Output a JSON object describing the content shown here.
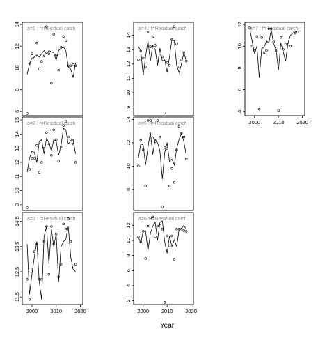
{
  "figure": {
    "xlabel": "Year"
  },
  "chart_data": [
    {
      "type": "scatter",
      "panel_label": "a=1 : f=Residual catch",
      "xlim": [
        1996,
        2021
      ],
      "ylim": [
        5.6,
        14.2
      ],
      "y_ticks": [
        6,
        8,
        10,
        12,
        14
      ],
      "x_ticks": [],
      "series": [
        {
          "role": "observed_points",
          "x": [
            1998,
            1999,
            2000,
            2001,
            2002,
            2003,
            2004,
            2005,
            2006,
            2007,
            2008,
            2009,
            2010,
            2011,
            2012,
            2013,
            2014,
            2015,
            2016,
            2017,
            2018
          ],
          "y": [
            5.8,
            10.4,
            11.3,
            10.9,
            12.3,
            9.9,
            10.6,
            11.1,
            13.8,
            11.3,
            8.6,
            13.1,
            11.2,
            9.8,
            11.9,
            12.9,
            12.5,
            10.2,
            10.2,
            10.3,
            10.2
          ]
        },
        {
          "role": "fitted_line",
          "x": [
            1998,
            1999,
            2000,
            2001,
            2002,
            2003,
            2004,
            2005,
            2006,
            2007,
            2008,
            2009,
            2010,
            2011,
            2012,
            2013,
            2014,
            2015,
            2016,
            2017,
            2018
          ],
          "y": [
            9.4,
            10.4,
            10.9,
            11.0,
            11.2,
            11.0,
            11.3,
            11.6,
            11.3,
            11.6,
            11.5,
            11.4,
            10.7,
            11.6,
            11.8,
            11.9,
            11.6,
            10.1,
            9.9,
            9.1,
            10.5
          ]
        }
      ]
    },
    {
      "type": "scatter",
      "panel_label": "a=4 : f=Residual catch",
      "xlim": [
        1996,
        2021
      ],
      "ylim": [
        8.4,
        14.9
      ],
      "y_ticks": [
        9,
        10,
        11,
        12,
        13,
        14
      ],
      "x_ticks": [],
      "series": [
        {
          "role": "observed_points",
          "x": [
            1998,
            1999,
            2000,
            2001,
            2002,
            2003,
            2004,
            2005,
            2006,
            2007,
            2008,
            2009,
            2010,
            2011,
            2012,
            2013,
            2014,
            2015,
            2016,
            2017,
            2018
          ],
          "y": [
            12.3,
            12.9,
            12.4,
            11.8,
            14.2,
            13.2,
            13.9,
            13.3,
            12.2,
            12.6,
            12.5,
            8.6,
            12.1,
            11.9,
            13.7,
            14.6,
            13.4,
            11.8,
            12.3,
            12.8,
            12.2
          ]
        },
        {
          "role": "fitted_line",
          "x": [
            1998,
            1999,
            2000,
            2001,
            2002,
            2003,
            2004,
            2005,
            2006,
            2007,
            2008,
            2009,
            2010,
            2011,
            2012,
            2013,
            2014,
            2015,
            2016,
            2017,
            2018
          ],
          "y": [
            13.2,
            12.9,
            11.2,
            12.5,
            13.6,
            12.2,
            13.3,
            13.0,
            11.9,
            13.1,
            12.2,
            12.3,
            11.4,
            12.5,
            13.7,
            13.6,
            11.9,
            11.4,
            12.0,
            12.8,
            12.2
          ]
        }
      ]
    },
    {
      "type": "scatter",
      "panel_label": "a=7 : f=Residual catch",
      "xlim": [
        1996,
        2021
      ],
      "ylim": [
        3.6,
        12.2
      ],
      "y_ticks": [
        4,
        6,
        8,
        10,
        12
      ],
      "x_ticks": [
        2000,
        2010,
        2020
      ],
      "series": [
        {
          "role": "observed_points",
          "x": [
            1998,
            1999,
            2000,
            2001,
            2002,
            2003,
            2004,
            2005,
            2006,
            2007,
            2008,
            2009,
            2010,
            2011,
            2012,
            2013,
            2014,
            2015,
            2016,
            2017,
            2018
          ],
          "y": [
            11.7,
            10.0,
            9.6,
            10.9,
            4.2,
            10.8,
            9.4,
            9.6,
            11.6,
            11.6,
            10.4,
            9.6,
            4.1,
            10.8,
            9.7,
            10.2,
            10.2,
            10.0,
            11.3,
            11.2,
            11.3
          ]
        },
        {
          "role": "fitted_line",
          "x": [
            1998,
            1999,
            2000,
            2001,
            2002,
            2003,
            2004,
            2005,
            2006,
            2007,
            2008,
            2009,
            2010,
            2011,
            2012,
            2013,
            2014,
            2015,
            2016,
            2017,
            2018
          ],
          "y": [
            11.6,
            10.5,
            9.3,
            10.0,
            7.1,
            9.8,
            9.9,
            10.5,
            10.3,
            11.5,
            10.2,
            9.7,
            7.8,
            10.3,
            9.5,
            8.6,
            10.3,
            11.0,
            11.2,
            11.3,
            11.4
          ]
        }
      ]
    },
    {
      "type": "scatter",
      "panel_label": "a=2 : f=Residual catch",
      "xlim": [
        1996,
        2021
      ],
      "ylim": [
        8.6,
        15.2
      ],
      "y_ticks": [
        9,
        10,
        11,
        12,
        13,
        14,
        15
      ],
      "x_ticks": [],
      "series": [
        {
          "role": "observed_points",
          "x": [
            1998,
            1999,
            2000,
            2001,
            2002,
            2003,
            2004,
            2005,
            2006,
            2007,
            2008,
            2009,
            2010,
            2011,
            2012,
            2013,
            2014,
            2015,
            2016,
            2017,
            2018
          ],
          "y": [
            8.8,
            11.5,
            12.3,
            12.3,
            13.2,
            11.3,
            12.0,
            13.0,
            14.1,
            13.3,
            12.5,
            14.3,
            13.6,
            12.1,
            13.1,
            14.6,
            14.9,
            13.8,
            13.6,
            13.3,
            12.0
          ]
        },
        {
          "role": "fitted_line",
          "x": [
            1998,
            1999,
            2000,
            2001,
            2002,
            2003,
            2004,
            2005,
            2006,
            2007,
            2008,
            2009,
            2010,
            2011,
            2012,
            2013,
            2014,
            2015,
            2016,
            2017,
            2018
          ],
          "y": [
            11.3,
            12.3,
            12.8,
            12.7,
            12.0,
            13.5,
            13.6,
            12.6,
            13.7,
            13.4,
            12.8,
            13.6,
            13.5,
            12.5,
            13.2,
            14.4,
            14.3,
            13.3,
            13.5,
            13.6,
            12.6
          ]
        }
      ]
    },
    {
      "type": "scatter",
      "panel_label": "a=5 : f=Residual catch",
      "xlim": [
        1996,
        2021
      ],
      "ylim": [
        6.2,
        14.2
      ],
      "y_ticks": [
        8,
        10,
        12,
        14
      ],
      "x_ticks": [],
      "series": [
        {
          "role": "observed_points",
          "x": [
            1998,
            1999,
            2000,
            2001,
            2002,
            2003,
            2004,
            2005,
            2006,
            2007,
            2008,
            2009,
            2010,
            2011,
            2012,
            2013,
            2014,
            2015,
            2016,
            2017,
            2018
          ],
          "y": [
            10.0,
            12.2,
            11.4,
            8.3,
            13.9,
            13.9,
            12.4,
            12.1,
            13.9,
            12.5,
            6.5,
            11.6,
            11.5,
            8.3,
            9.8,
            8.6,
            11.4,
            13.4,
            12.8,
            12.5,
            10.6
          ]
        },
        {
          "role": "fitted_line",
          "x": [
            1998,
            1999,
            2000,
            2001,
            2002,
            2003,
            2004,
            2005,
            2006,
            2007,
            2008,
            2009,
            2010,
            2011,
            2012,
            2013,
            2014,
            2015,
            2016,
            2017,
            2018
          ],
          "y": [
            10.7,
            11.9,
            11.8,
            10.1,
            11.6,
            12.9,
            11.0,
            12.3,
            12.0,
            11.3,
            8.9,
            11.2,
            12.0,
            10.4,
            10.6,
            10.1,
            11.5,
            12.3,
            12.8,
            12.1,
            10.9
          ]
        }
      ]
    },
    {
      "type": "scatter",
      "panel_label": "a=3 : f=Residual catch",
      "xlim": [
        1996,
        2021
      ],
      "ylim": [
        11.2,
        14.85
      ],
      "y_ticks": [
        11.5,
        12.5,
        13.5,
        14.5
      ],
      "x_ticks": [
        2000,
        2010,
        2020
      ],
      "series": [
        {
          "role": "observed_points",
          "x": [
            1998,
            1999,
            2000,
            2001,
            2002,
            2003,
            2004,
            2005,
            2006,
            2007,
            2008,
            2009,
            2010,
            2011,
            2012,
            2013,
            2014,
            2015,
            2016,
            2017,
            2018
          ],
          "y": [
            12.2,
            11.4,
            12.6,
            13.3,
            13.6,
            12.2,
            12.2,
            13.7,
            14.3,
            12.4,
            14.3,
            13.6,
            14.0,
            12.3,
            12.8,
            14.4,
            14.2,
            14.6,
            13.7,
            12.7,
            12.8
          ]
        },
        {
          "role": "fitted_line",
          "x": [
            1998,
            1999,
            2000,
            2001,
            2002,
            2003,
            2004,
            2005,
            2006,
            2007,
            2008,
            2009,
            2010,
            2011,
            2012,
            2013,
            2014,
            2015,
            2016,
            2017,
            2018
          ],
          "y": [
            13.6,
            11.6,
            12.4,
            13.1,
            13.7,
            12.1,
            11.4,
            13.9,
            14.3,
            12.8,
            14.2,
            13.5,
            14.0,
            12.1,
            13.5,
            13.7,
            13.8,
            14.3,
            13.1,
            12.6,
            12.5
          ]
        }
      ]
    },
    {
      "type": "scatter",
      "panel_label": "a=6 : f=Residual catch",
      "xlim": [
        1996,
        2021
      ],
      "ylim": [
        1.5,
        13.7
      ],
      "y_ticks": [
        2,
        4,
        6,
        8,
        10,
        12
      ],
      "x_ticks": [
        2000,
        2010,
        2020
      ],
      "series": [
        {
          "role": "observed_points",
          "x": [
            1998,
            1999,
            2000,
            2001,
            2002,
            2003,
            2004,
            2005,
            2006,
            2007,
            2008,
            2009,
            2010,
            2011,
            2012,
            2013,
            2014,
            2015,
            2016,
            2017,
            2018
          ],
          "y": [
            10.5,
            9.8,
            11.2,
            7.6,
            11.9,
            13.0,
            13.1,
            10.5,
            11.9,
            12.0,
            11.5,
            1.8,
            10.6,
            9.3,
            10.6,
            7.5,
            11.5,
            11.5,
            11.5,
            11.3,
            11.2
          ]
        },
        {
          "role": "fitted_line",
          "x": [
            1998,
            1999,
            2000,
            2001,
            2002,
            2003,
            2004,
            2005,
            2006,
            2007,
            2008,
            2009,
            2010,
            2011,
            2012,
            2013,
            2014,
            2015,
            2016,
            2017,
            2018
          ],
          "y": [
            10.4,
            9.7,
            11.2,
            11.3,
            8.6,
            10.9,
            11.9,
            12.4,
            10.0,
            12.4,
            12.6,
            9.8,
            8.3,
            10.6,
            9.2,
            10.1,
            9.2,
            11.4,
            11.6,
            12.0,
            11.5
          ]
        }
      ]
    }
  ]
}
